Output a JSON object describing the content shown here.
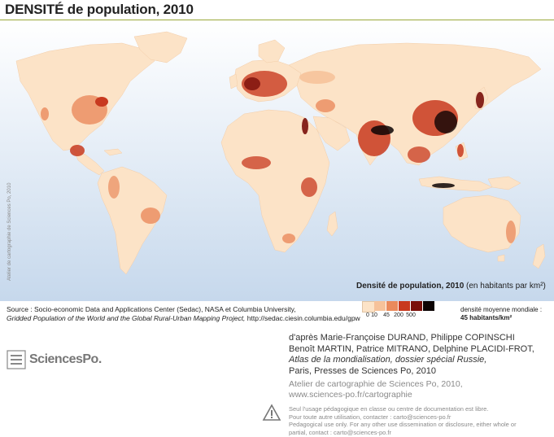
{
  "title": {
    "main": "DENSITÉ de population, 2010"
  },
  "map": {
    "ocean_color": "#d2e0ef",
    "land_color": "#fce3c7",
    "vertical_credit": "Atelier de cartographie de Sciences Po, 2010"
  },
  "legend": {
    "title_bold": "Densité de population, 2010",
    "title_rest": " (en habitants par km²)",
    "classes": [
      {
        "label": "0",
        "color": "#fce3c7"
      },
      {
        "label": "10",
        "color": "#f6c29a"
      },
      {
        "label": "45",
        "color": "#ea8a5c"
      },
      {
        "label": "200",
        "color": "#c8391f"
      },
      {
        "label": "500",
        "color": "#7a0f0a"
      },
      {
        "label": "",
        "color": "#0c0404"
      }
    ],
    "mean_label": "densité moyenne mondiale :",
    "mean_value": "45 habitants/km²"
  },
  "source": {
    "line1": "Source : Socio-economic Data and Applications Center (Sedac), NASA et Columbia University,",
    "line2_italic": "Gridded Population of the World and the Global Rural-Urban Mapping Project,",
    "line2_rest": " http://sedac.ciesin.columbia.edu/gpw"
  },
  "credits": {
    "line1": "d'après Marie-Françoise DURAND, Philippe COPINSCHI",
    "line2": "Benoît MARTIN, Patrice MITRANO, Delphine PLACIDI-FROT,",
    "line3_italic": "Atlas de la mondialisation, dossier spécial Russie,",
    "line4": "Paris, Presses de Sciences Po, 2010"
  },
  "atelier": {
    "line1": "Atelier de cartographie de Sciences Po, 2010,",
    "line2": "www.sciences-po.fr/cartographie"
  },
  "notice": {
    "line1": "Seul l'usage pédagogique en classe ou centre de documentation est libre.",
    "line2": "Pour toute autre utilisation, contacter : carto@sciences-po.fr",
    "line3": "Pedagogical use only. For any other use dissemination or disclosure, either whole or",
    "line4": "partial, contact : carto@sciences-po.fr"
  },
  "logo": {
    "text": "SciencesPo."
  }
}
